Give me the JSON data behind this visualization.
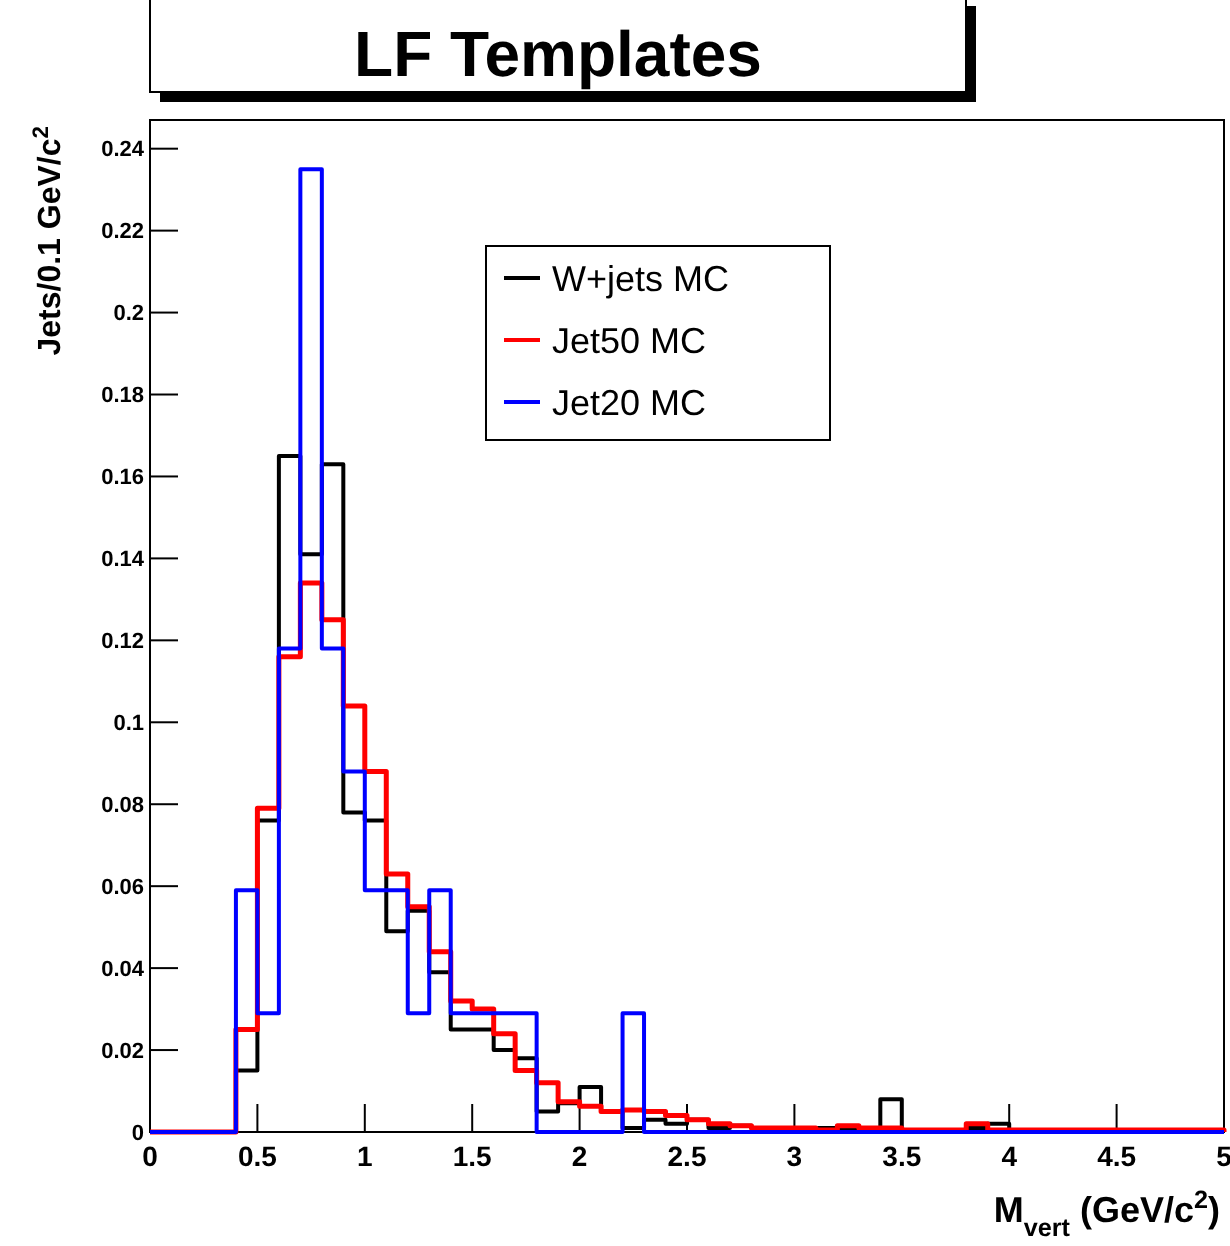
{
  "chart_data": {
    "type": "histogram",
    "title": "LF Templates",
    "xlabel": "M$_{vert}$ (GeV/c$^{2}$)",
    "ylabel": "Jets/0.1 GeV/c$^{2}$",
    "bins": [
      0,
      0.1,
      0.2,
      0.3,
      0.4,
      0.5,
      0.6,
      0.7,
      0.8,
      0.9,
      1,
      1.1,
      1.2,
      1.3,
      1.4,
      1.5,
      1.6,
      1.7,
      1.8,
      1.9,
      2,
      2.1,
      2.2,
      2.3,
      2.4,
      2.5,
      2.6,
      2.7,
      2.8,
      2.9,
      3,
      3.1,
      3.2,
      3.3,
      3.4,
      3.5,
      3.6,
      3.7,
      3.8,
      3.9,
      4,
      4.1,
      4.2,
      4.3,
      4.4,
      4.5,
      4.6,
      4.7,
      4.8,
      4.9,
      5
    ],
    "series": [
      {
        "name": "W+jets MC",
        "color": "#000000",
        "values": [
          0,
          0,
          0,
          0,
          0.015,
          0.076,
          0.165,
          0.141,
          0.163,
          0.078,
          0.076,
          0.049,
          0.054,
          0.039,
          0.025,
          0.025,
          0.02,
          0.018,
          0.005,
          0.007,
          0.011,
          0.005,
          0.001,
          0.003,
          0.002,
          0.003,
          0.001,
          0.0015,
          0.001,
          0.001,
          0.001,
          0.001,
          0.001,
          0.001,
          0.008,
          0,
          0,
          0,
          0.001,
          0.002,
          0,
          0,
          0,
          0,
          0,
          0,
          0,
          0,
          0,
          0
        ]
      },
      {
        "name": "Jet50 MC",
        "color": "#ff0000",
        "values": [
          0,
          0,
          0,
          0,
          0.025,
          0.079,
          0.116,
          0.134,
          0.125,
          0.104,
          0.088,
          0.063,
          0.055,
          0.044,
          0.032,
          0.03,
          0.024,
          0.015,
          0.012,
          0.0074,
          0.0063,
          0.005,
          0.0054,
          0.005,
          0.004,
          0.003,
          0.002,
          0.0015,
          0.001,
          0.001,
          0.001,
          0.0005,
          0.0015,
          0.001,
          0.001,
          0.0005,
          0.0005,
          0.0005,
          0.002,
          0.0005,
          0.0005,
          0.0005,
          0.0005,
          0.0005,
          0.0005,
          0.0005,
          0.0005,
          0.0005,
          0.0005,
          0.0005
        ]
      },
      {
        "name": "Jet20 MC",
        "color": "#0000ff",
        "values": [
          0,
          0,
          0,
          0,
          0.059,
          0.029,
          0.118,
          0.235,
          0.118,
          0.088,
          0.059,
          0.059,
          0.029,
          0.059,
          0.029,
          0.029,
          0.029,
          0.029,
          0,
          0,
          0,
          0,
          0.029,
          0,
          0,
          0,
          0,
          0,
          0,
          0,
          0,
          0,
          0,
          0,
          0,
          0,
          0,
          0,
          0,
          0,
          0,
          0,
          0,
          0,
          0,
          0,
          0,
          0,
          0,
          0
        ]
      }
    ],
    "xlim": [
      0,
      5
    ],
    "xticks": [
      0,
      0.5,
      1,
      1.5,
      2,
      2.5,
      3,
      3.5,
      4,
      4.5,
      5
    ],
    "ylim": [
      0,
      0.247
    ],
    "yticks": [
      0,
      0.02,
      0.04,
      0.06,
      0.08,
      0.1,
      0.12,
      0.14,
      0.16,
      0.18,
      0.2,
      0.22,
      0.24
    ],
    "legend": "top"
  }
}
